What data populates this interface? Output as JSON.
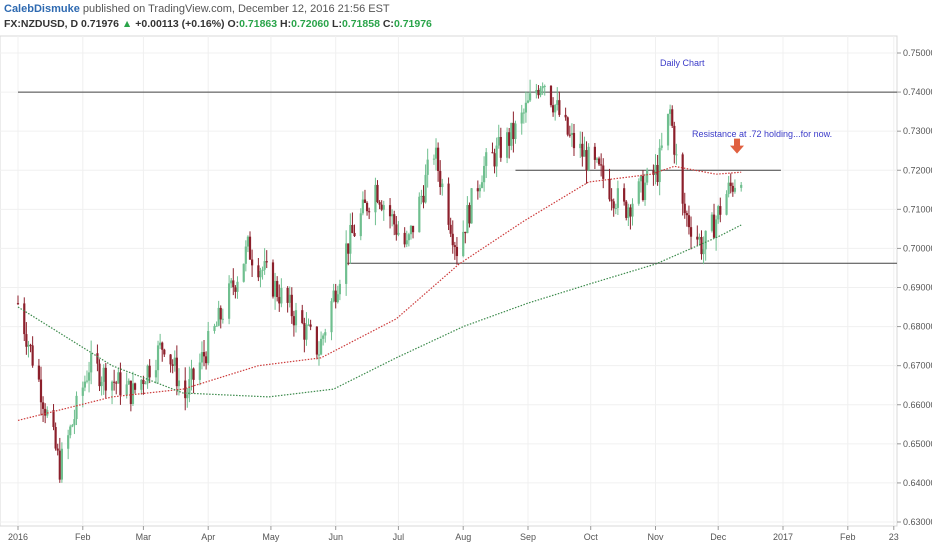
{
  "header": {
    "author": "CalebDismuke",
    "published": " published on TradingView.com, December 12, 2016 21:56 EST",
    "symbol": "FX:NZDUSD, D",
    "last": "0.71976",
    "change": "+0.00113 (+0.16%)",
    "o_label": "O:",
    "o": "0.71863",
    "h_label": "H:",
    "h": "0.72060",
    "l_label": "L:",
    "l": "0.71858",
    "c_label": "C:",
    "c": "0.71976"
  },
  "chart_data": {
    "type": "line",
    "annotations": {
      "title": "Daily Chart",
      "note": "Resistance at .72 holding...for now."
    },
    "ylim": [
      0.6285,
      0.7535
    ],
    "y_ticks": [
      "0.75000",
      "0.74000",
      "0.73000",
      "0.72000",
      "0.71000",
      "0.70000",
      "0.69000",
      "0.68000",
      "0.67000",
      "0.66000",
      "0.65000",
      "0.64000",
      "0.63000"
    ],
    "x_ticks": [
      "2016",
      "Feb",
      "Mar",
      "Apr",
      "May",
      "Jun",
      "Jul",
      "Aug",
      "Sep",
      "Oct",
      "Nov",
      "Dec",
      "2017",
      "Feb",
      "23"
    ],
    "horizontal_levels": [
      {
        "value": 0.74,
        "from": "2016-01-01",
        "to": "end"
      },
      {
        "value": 0.72,
        "from": "2016-08-26",
        "to": "2016-12-31"
      },
      {
        "value": 0.6962,
        "from": "2016-06-06",
        "to": "end"
      }
    ],
    "close_series_approx": [
      {
        "date": "2016-01-01",
        "close": 0.686
      },
      {
        "date": "2016-01-12",
        "close": 0.664
      },
      {
        "date": "2016-01-21",
        "close": 0.644
      },
      {
        "date": "2016-02-04",
        "close": 0.67
      },
      {
        "date": "2016-02-25",
        "close": 0.663
      },
      {
        "date": "2016-03-11",
        "close": 0.676
      },
      {
        "date": "2016-03-21",
        "close": 0.662
      },
      {
        "date": "2016-04-05",
        "close": 0.68
      },
      {
        "date": "2016-04-20",
        "close": 0.7
      },
      {
        "date": "2016-05-03",
        "close": 0.69
      },
      {
        "date": "2016-05-24",
        "close": 0.674
      },
      {
        "date": "2016-06-06",
        "close": 0.7
      },
      {
        "date": "2016-06-20",
        "close": 0.716
      },
      {
        "date": "2016-07-05",
        "close": 0.7
      },
      {
        "date": "2016-07-18",
        "close": 0.725
      },
      {
        "date": "2016-07-29",
        "close": 0.7
      },
      {
        "date": "2016-08-10",
        "close": 0.72
      },
      {
        "date": "2016-08-26",
        "close": 0.73
      },
      {
        "date": "2016-09-08",
        "close": 0.744
      },
      {
        "date": "2016-09-21",
        "close": 0.728
      },
      {
        "date": "2016-10-07",
        "close": 0.718
      },
      {
        "date": "2016-10-17",
        "close": 0.71
      },
      {
        "date": "2016-11-02",
        "close": 0.72
      },
      {
        "date": "2016-11-08",
        "close": 0.735
      },
      {
        "date": "2016-11-14",
        "close": 0.71
      },
      {
        "date": "2016-11-24",
        "close": 0.7
      },
      {
        "date": "2016-12-05",
        "close": 0.714
      },
      {
        "date": "2016-12-12",
        "close": 0.7198
      }
    ],
    "ma_50_approx": [
      {
        "date": "2016-01-01",
        "value": 0.656
      },
      {
        "date": "2016-02-15",
        "value": 0.662
      },
      {
        "date": "2016-03-20",
        "value": 0.664
      },
      {
        "date": "2016-04-25",
        "value": 0.67
      },
      {
        "date": "2016-05-25",
        "value": 0.672
      },
      {
        "date": "2016-06-30",
        "value": 0.682
      },
      {
        "date": "2016-07-30",
        "value": 0.696
      },
      {
        "date": "2016-08-30",
        "value": 0.707
      },
      {
        "date": "2016-09-30",
        "value": 0.717
      },
      {
        "date": "2016-10-30",
        "value": 0.719
      },
      {
        "date": "2016-11-10",
        "value": 0.721
      },
      {
        "date": "2016-11-30",
        "value": 0.719
      },
      {
        "date": "2016-12-12",
        "value": 0.7195
      }
    ],
    "ma_200_approx": [
      {
        "date": "2016-01-01",
        "value": 0.685
      },
      {
        "date": "2016-02-15",
        "value": 0.67
      },
      {
        "date": "2016-03-20",
        "value": 0.663
      },
      {
        "date": "2016-04-30",
        "value": 0.662
      },
      {
        "date": "2016-05-31",
        "value": 0.664
      },
      {
        "date": "2016-06-30",
        "value": 0.672
      },
      {
        "date": "2016-08-01",
        "value": 0.68
      },
      {
        "date": "2016-09-01",
        "value": 0.686
      },
      {
        "date": "2016-10-01",
        "value": 0.691
      },
      {
        "date": "2016-11-01",
        "value": 0.696
      },
      {
        "date": "2016-12-01",
        "value": 0.703
      },
      {
        "date": "2016-12-12",
        "value": 0.706
      }
    ],
    "marker": {
      "type": "down-arrow",
      "date": "2016-12-10",
      "value": 0.724,
      "color": "#e06040"
    },
    "colors": {
      "up": "#6fbf8f",
      "down": "#8c1f2b",
      "ma50": "#cc3a3a",
      "ma200": "#3b8a4b",
      "annotation": "#3a3ac8",
      "level": "#444444"
    }
  }
}
